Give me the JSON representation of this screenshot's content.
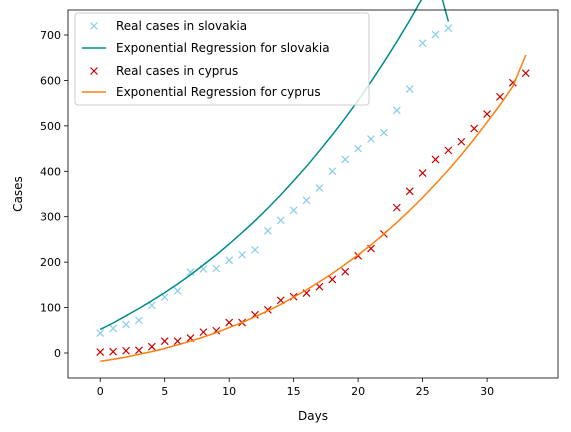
{
  "chart_data": {
    "type": "scatter",
    "title": "",
    "xlabel": "Days",
    "ylabel": "Cases",
    "xlim": [
      -2.5,
      35.5
    ],
    "ylim": [
      -55,
      755
    ],
    "xticks": [
      0,
      5,
      10,
      15,
      20,
      25,
      30
    ],
    "yticks": [
      0,
      100,
      200,
      300,
      400,
      500,
      600,
      700
    ],
    "grid": false,
    "legend_position": "top-left",
    "series": [
      {
        "name": "Real cases in slovakia",
        "kind": "markers",
        "marker": "x",
        "color": "#87ceeb",
        "x": [
          0,
          1,
          2,
          3,
          4,
          5,
          6,
          7,
          8,
          9,
          10,
          11,
          12,
          13,
          14,
          15,
          16,
          17,
          18,
          19,
          20,
          21,
          22,
          23,
          24,
          25,
          26,
          27
        ],
        "y": [
          44,
          54,
          63,
          72,
          105,
          123,
          137,
          178,
          185,
          186,
          204,
          216,
          227,
          269,
          292,
          314,
          336,
          363,
          400,
          426,
          450,
          471,
          485,
          534,
          581,
          682,
          701,
          715
        ]
      },
      {
        "name": "Exponential Regression for slovakia",
        "kind": "line",
        "color": "#008b8b",
        "x": [
          0,
          1,
          2,
          3,
          4,
          5,
          6,
          7,
          8,
          9,
          10,
          11,
          12,
          13,
          14,
          15,
          16,
          17,
          18,
          19,
          20,
          21,
          22,
          23,
          24,
          25,
          26,
          27
        ],
        "y": [
          52,
          66,
          82,
          98,
          115,
          133,
          152,
          172,
          194,
          216,
          240,
          265,
          291,
          319,
          348,
          379,
          411,
          445,
          480,
          517,
          556,
          597,
          640,
          685,
          732,
          782,
          833,
          730
        ]
      },
      {
        "name": "Real cases in cyprus",
        "kind": "markers",
        "marker": "x",
        "color": "#cc0000",
        "x": [
          0,
          1,
          2,
          3,
          4,
          5,
          6,
          7,
          8,
          9,
          10,
          11,
          12,
          13,
          14,
          15,
          16,
          17,
          18,
          19,
          20,
          21,
          22,
          23,
          24,
          25,
          26,
          27,
          28,
          29,
          30,
          31,
          32,
          33
        ],
        "y": [
          2,
          3,
          5,
          6,
          14,
          26,
          26,
          33,
          46,
          49,
          67,
          67,
          84,
          95,
          116,
          124,
          132,
          146,
          162,
          179,
          214,
          230,
          262,
          320,
          356,
          396,
          426,
          446,
          465,
          494,
          526,
          564,
          595,
          616
        ]
      },
      {
        "name": "Exponential Regression for cyprus",
        "kind": "line",
        "color": "#ff7f0e",
        "x": [
          0,
          1,
          2,
          3,
          4,
          5,
          6,
          7,
          8,
          9,
          10,
          11,
          12,
          13,
          14,
          15,
          16,
          17,
          18,
          19,
          20,
          21,
          22,
          23,
          24,
          25,
          26,
          27,
          28,
          29,
          30,
          31,
          32,
          33
        ],
        "y": [
          -18,
          -14,
          -9,
          -3,
          3,
          10,
          18,
          26,
          35,
          45,
          56,
          67,
          80,
          93,
          107,
          123,
          139,
          157,
          175,
          195,
          216,
          238,
          262,
          287,
          314,
          342,
          372,
          403,
          436,
          471,
          508,
          546,
          587,
          656
        ]
      }
    ]
  }
}
